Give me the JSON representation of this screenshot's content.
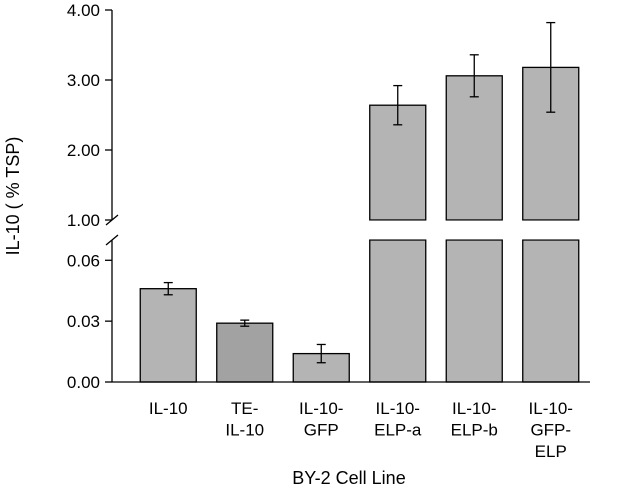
{
  "chart_data": {
    "type": "bar",
    "title": "",
    "xlabel": "BY-2 Cell Line",
    "ylabel": "IL-10 ( % TSP)",
    "categories": [
      [
        "IL-10"
      ],
      [
        "TE-",
        "IL-10"
      ],
      [
        "IL-10-",
        "GFP"
      ],
      [
        "IL-10-",
        "ELP-a"
      ],
      [
        "IL-10-",
        "ELP-b"
      ],
      [
        "IL-10-",
        "GFP-",
        "ELP"
      ]
    ],
    "values": [
      0.046,
      0.029,
      0.014,
      2.64,
      3.06,
      3.18
    ],
    "errors": [
      0.003,
      0.0015,
      0.0045,
      0.28,
      0.3,
      0.64
    ],
    "bar_colors": [
      "#b4b4b4",
      "#a2a2a2",
      "#b4b4b4",
      "#b4b4b4",
      "#b4b4b4",
      "#b4b4b4"
    ],
    "broken_axis": true,
    "lower_segment": {
      "ylim": [
        0,
        0.07
      ],
      "ticks": [
        "0.00",
        "0.03",
        "0.06"
      ],
      "tick_values": [
        0,
        0.03,
        0.06
      ]
    },
    "upper_segment": {
      "ylim": [
        1.0,
        4.0
      ],
      "ticks": [
        "1.00",
        "2.00",
        "3.00",
        "4.00"
      ],
      "tick_values": [
        1.0,
        2.0,
        3.0,
        4.0
      ]
    },
    "grid": false,
    "legend": "none"
  }
}
